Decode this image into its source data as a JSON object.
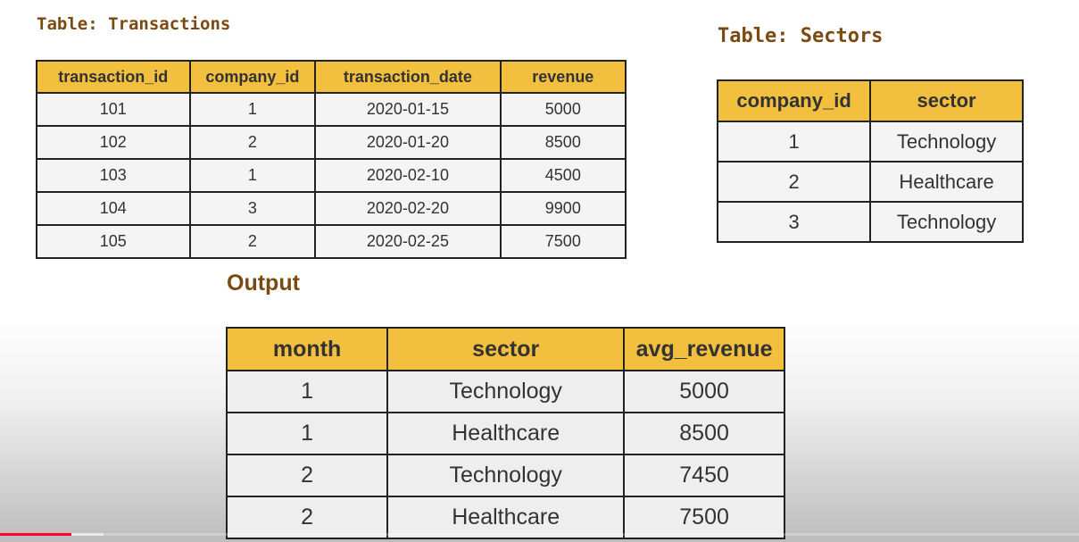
{
  "transactions": {
    "title": "Table: Transactions",
    "headers": [
      "transaction_id",
      "company_id",
      "transaction_date",
      "revenue"
    ],
    "rows": [
      [
        "101",
        "1",
        "2020-01-15",
        "5000"
      ],
      [
        "102",
        "2",
        "2020-01-20",
        "8500"
      ],
      [
        "103",
        "1",
        "2020-02-10",
        "4500"
      ],
      [
        "104",
        "3",
        "2020-02-20",
        "9900"
      ],
      [
        "105",
        "2",
        "2020-02-25",
        "7500"
      ]
    ]
  },
  "sectors": {
    "title": "Table: Sectors",
    "headers": [
      "company_id",
      "sector"
    ],
    "rows": [
      [
        "1",
        "Technology"
      ],
      [
        "2",
        "Healthcare"
      ],
      [
        "3",
        "Technology"
      ]
    ]
  },
  "output": {
    "title": "Output",
    "headers": [
      "month",
      "sector",
      "avg_revenue"
    ],
    "rows": [
      [
        "1",
        "Technology",
        "5000"
      ],
      [
        "1",
        "Healthcare",
        "8500"
      ],
      [
        "2",
        "Technology",
        "7450"
      ],
      [
        "2",
        "Healthcare",
        "7500"
      ]
    ]
  },
  "video_progress": {
    "played_fraction": 0.066,
    "buffered_fraction": 0.096,
    "played_color": "#ff0033"
  },
  "colors": {
    "header_fill": "#f2bf3e",
    "heading_text": "#7a4a10",
    "border": "#222222"
  }
}
